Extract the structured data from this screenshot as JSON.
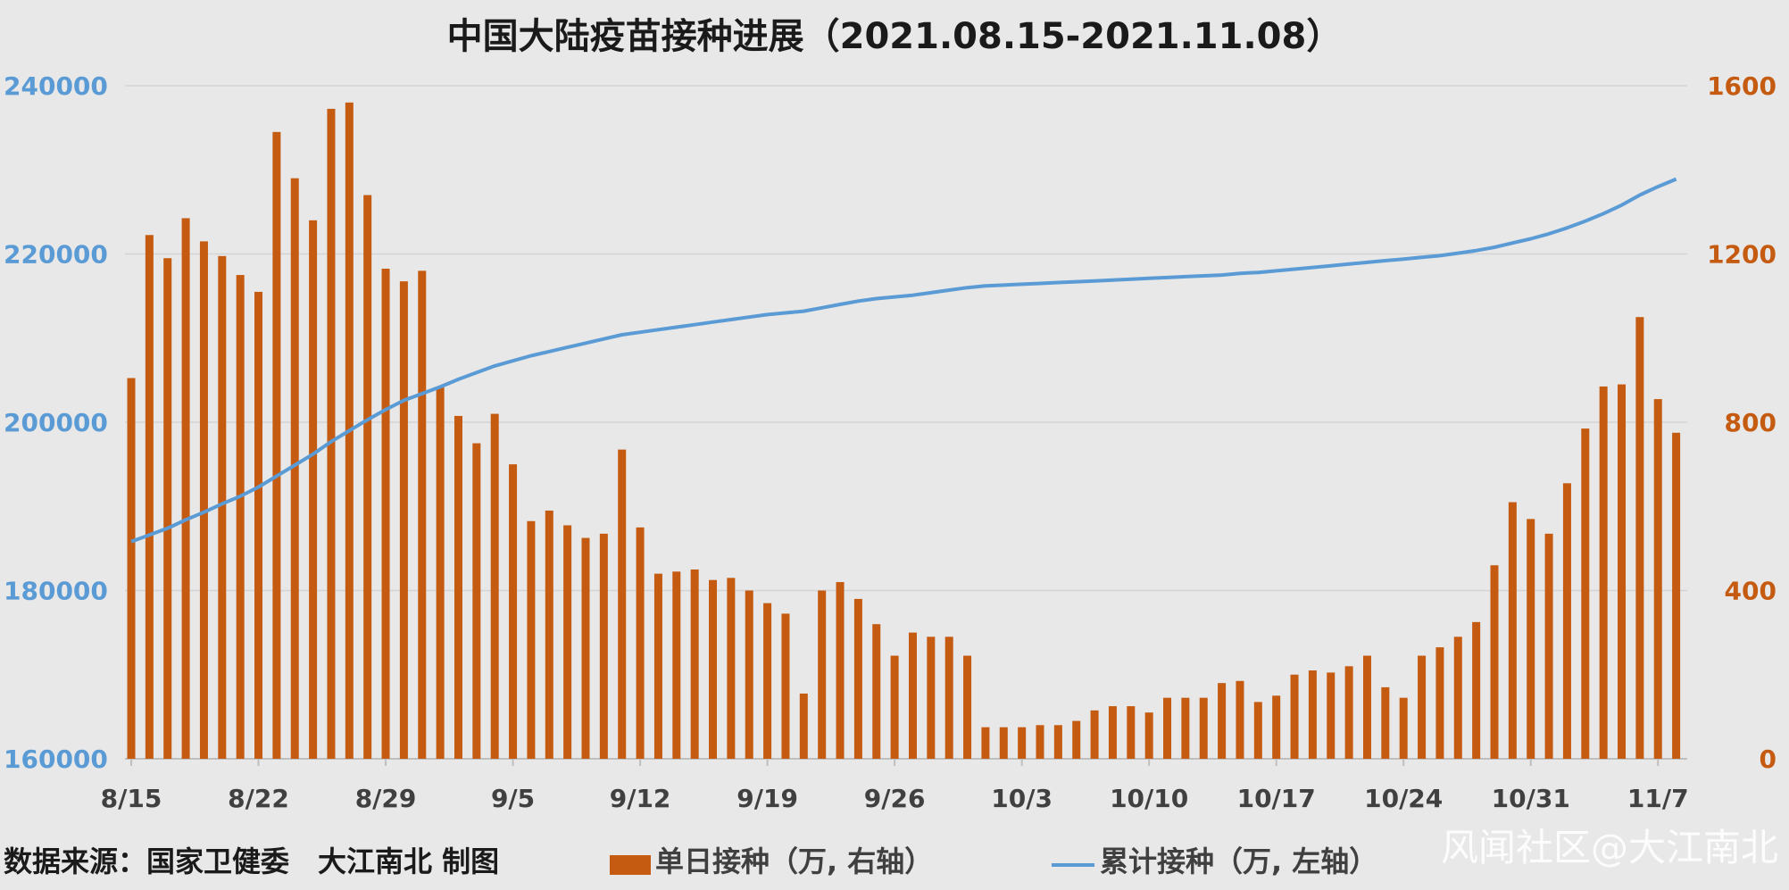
{
  "chart_data": {
    "type": "bar+line",
    "title": "中国大陆疫苗接种进展（2021.08.15-2021.11.08）",
    "y_left": {
      "ticks": [
        "160000",
        "180000",
        "200000",
        "220000",
        "240000"
      ],
      "lim": [
        160000,
        240000
      ],
      "color": "#5b9bd5"
    },
    "y_right": {
      "ticks": [
        "0",
        "400",
        "800",
        "1200",
        "1600"
      ],
      "lim": [
        0,
        1600
      ],
      "color": "#c55a11"
    },
    "x_tick_labels": [
      "8/15",
      "8/22",
      "8/29",
      "9/5",
      "9/12",
      "9/19",
      "9/26",
      "10/3",
      "10/10",
      "10/17",
      "10/24",
      "10/31",
      "11/7"
    ],
    "grid": true,
    "series": [
      {
        "name": "单日接种（万, 右轴）",
        "type": "bar",
        "axis": "right",
        "color": "#c55a11",
        "values": [
          905,
          1245,
          1190,
          1285,
          1230,
          1195,
          1150,
          1110,
          1490,
          1380,
          1280,
          1545,
          1560,
          1340,
          1165,
          1135,
          1160,
          885,
          815,
          750,
          820,
          700,
          565,
          590,
          555,
          525,
          535,
          735,
          550,
          440,
          445,
          450,
          425,
          430,
          400,
          370,
          345,
          155,
          400,
          420,
          380,
          320,
          245,
          300,
          290,
          290,
          245,
          75,
          75,
          75,
          80,
          80,
          90,
          115,
          125,
          125,
          110,
          145,
          145,
          145,
          180,
          185,
          135,
          150,
          200,
          210,
          205,
          220,
          245,
          170,
          145,
          245,
          265,
          290,
          325,
          460,
          610,
          570,
          535,
          655,
          785,
          885,
          890,
          1050,
          855,
          775
        ],
        "total_text": "单日接种（万, 右轴）"
      },
      {
        "name": "累计接种（万, 左轴）",
        "type": "line",
        "axis": "left",
        "color": "#5b9bd5",
        "values": [
          185800,
          186600,
          187400,
          188400,
          189300,
          190300,
          191200,
          192300,
          193600,
          194900,
          196200,
          197700,
          199000,
          200300,
          201500,
          202600,
          203400,
          204200,
          205100,
          205900,
          206700,
          207300,
          207900,
          208400,
          208900,
          209400,
          209900,
          210400,
          210700,
          211000,
          211300,
          211600,
          211900,
          212200,
          212500,
          212800,
          213000,
          213200,
          213600,
          214000,
          214400,
          214700,
          214900,
          215100,
          215400,
          215700,
          216000,
          216200,
          216300,
          216400,
          216500,
          216600,
          216700,
          216800,
          216900,
          217000,
          217100,
          217200,
          217300,
          217400,
          217500,
          217700,
          217800,
          218000,
          218200,
          218400,
          218600,
          218800,
          219000,
          219200,
          219400,
          219600,
          219800,
          220100,
          220400,
          220800,
          221300,
          221800,
          222400,
          223100,
          223900,
          224800,
          225800,
          227000,
          228000,
          228900
        ]
      }
    ]
  },
  "footer": {
    "source": "数据来源：国家卫健委　大江南北 制图",
    "legend_bar": "单日接种（万, 右轴）",
    "legend_line": "累计接种（万, 左轴）",
    "watermark": "风闻社区@大江南北"
  }
}
